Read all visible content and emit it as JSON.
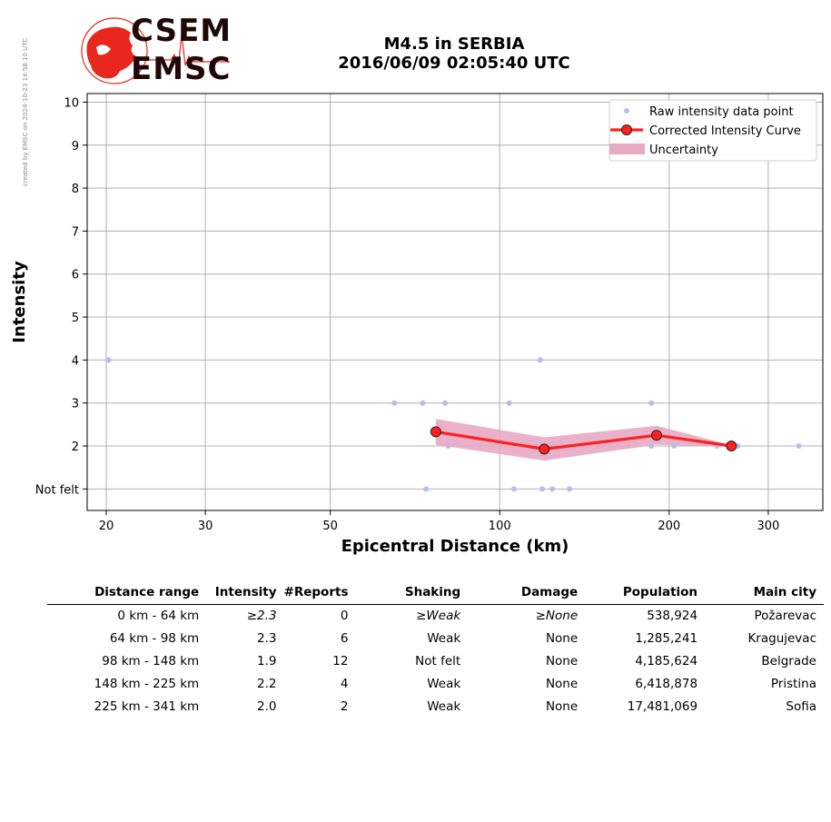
{
  "stamp": "created by EMSC on 2024-10-23 14:58:10 UTC",
  "logo": {
    "line1": "CSEM",
    "line2": "EMSC",
    "color": "#e8281e"
  },
  "title": {
    "line1": "M4.5 in SERBIA",
    "line2": "2016/06/09 02:05:40 UTC"
  },
  "chart_data": {
    "type": "scatter",
    "xlabel": "Epicentral Distance (km)",
    "ylabel": "Intensity",
    "x_scale": "log",
    "xlim": [
      18.5,
      375
    ],
    "ylim": [
      0.5,
      10.2
    ],
    "x_ticks": [
      20,
      30,
      50,
      100,
      200,
      300
    ],
    "y_ticks": [
      {
        "value": 1,
        "label": "Not felt"
      },
      {
        "value": 2,
        "label": "2"
      },
      {
        "value": 3,
        "label": "3"
      },
      {
        "value": 4,
        "label": "4"
      },
      {
        "value": 5,
        "label": "5"
      },
      {
        "value": 6,
        "label": "6"
      },
      {
        "value": 7,
        "label": "7"
      },
      {
        "value": 8,
        "label": "8"
      },
      {
        "value": 9,
        "label": "9"
      },
      {
        "value": 10,
        "label": "10"
      }
    ],
    "grid": true,
    "legend_position": "top-right",
    "series": [
      {
        "name": "Raw intensity data point",
        "kind": "points",
        "color": "#aec0ec",
        "points": [
          [
            20.2,
            4
          ],
          [
            65,
            3
          ],
          [
            73,
            3
          ],
          [
            80,
            3
          ],
          [
            104,
            3
          ],
          [
            118,
            4
          ],
          [
            186,
            3
          ],
          [
            81,
            2
          ],
          [
            92,
            2
          ],
          [
            113,
            2
          ],
          [
            150,
            2
          ],
          [
            170,
            2
          ],
          [
            186,
            2
          ],
          [
            204,
            2
          ],
          [
            243,
            2
          ],
          [
            265,
            2
          ],
          [
            340,
            2
          ],
          [
            74,
            1
          ],
          [
            106,
            1
          ],
          [
            119,
            1
          ],
          [
            124,
            1
          ],
          [
            133,
            1
          ]
        ]
      },
      {
        "name": "Corrected Intensity Curve",
        "kind": "line",
        "color": "#ff2020",
        "points": [
          [
            77,
            2.33
          ],
          [
            120,
            1.93
          ],
          [
            190,
            2.25
          ],
          [
            258,
            2.0
          ]
        ]
      },
      {
        "name": "Uncertainty",
        "kind": "band",
        "color": "#e8a9c4",
        "upper": [
          [
            77,
            2.63
          ],
          [
            120,
            2.2
          ],
          [
            190,
            2.47
          ],
          [
            258,
            2.02
          ]
        ],
        "lower": [
          [
            77,
            2.03
          ],
          [
            120,
            1.66
          ],
          [
            190,
            2.03
          ],
          [
            258,
            1.98
          ]
        ]
      }
    ]
  },
  "table": {
    "headers": [
      "Distance range",
      "Intensity",
      "#Reports",
      "Shaking",
      "Damage",
      "Population",
      "Main city"
    ],
    "rows": [
      [
        "0 km -   64 km",
        "≥2.3",
        "0",
        "≥Weak",
        "≥None",
        "538,924",
        "Požarevac"
      ],
      [
        "64 km -   98 km",
        "2.3",
        "6",
        "Weak",
        "None",
        "1,285,241",
        "Kragujevac"
      ],
      [
        "98 km -  148 km",
        "1.9",
        "12",
        "Not felt",
        "None",
        "4,185,624",
        "Belgrade"
      ],
      [
        "148 km -  225 km",
        "2.2",
        "4",
        "Weak",
        "None",
        "6,418,878",
        "Pristina"
      ],
      [
        "225 km -  341 km",
        "2.0",
        "2",
        "Weak",
        "None",
        "17,481,069",
        "Sofia"
      ]
    ]
  }
}
